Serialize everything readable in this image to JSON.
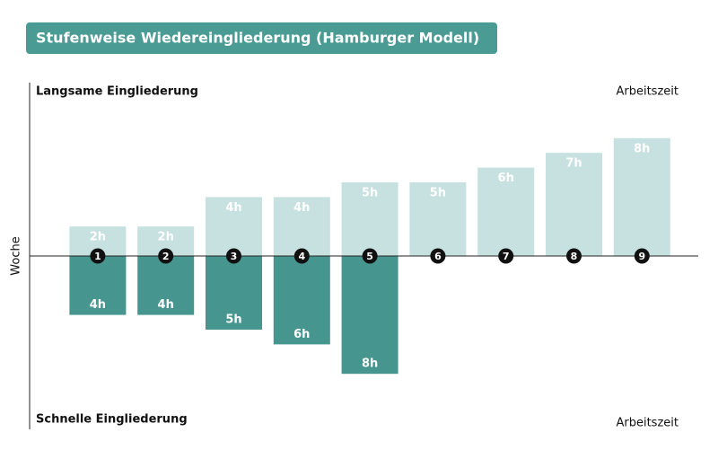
{
  "chart_data": {
    "type": "diverging-bar",
    "title": "Stufenweise Wiedereingliederung (Hamburger Modell)",
    "x_label": "Woche",
    "value_axis_label": "Arbeitszeit",
    "categories": [
      "1",
      "2",
      "3",
      "4",
      "5",
      "6",
      "7",
      "8",
      "9"
    ],
    "series": [
      {
        "name": "Langsame Eingliederung",
        "color": "#c6e1df",
        "values": [
          2,
          2,
          4,
          4,
          5,
          5,
          6,
          7,
          8
        ],
        "value_labels": [
          "2h",
          "2h",
          "4h",
          "4h",
          "5h",
          "5h",
          "6h",
          "7h",
          "8h"
        ]
      },
      {
        "name": "Schnelle Eingliederung",
        "color": "#46958f",
        "values": [
          4,
          4,
          5,
          6,
          8,
          null,
          null,
          null,
          null
        ],
        "value_labels": [
          "4h",
          "4h",
          "5h",
          "6h",
          "8h",
          null,
          null,
          null,
          null
        ]
      }
    ],
    "title_color": "#4b9b95"
  }
}
